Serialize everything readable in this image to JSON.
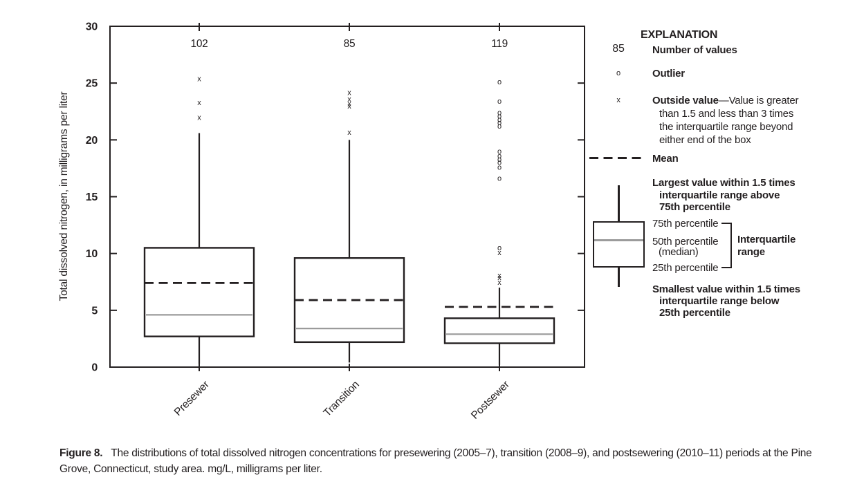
{
  "caption": {
    "label": "Figure 8.",
    "text": "The distributions of total dissolved nitrogen concentrations for presewering (2005–7), transition (2008–9), and postsewering (2010–11) periods at the Pine Grove, Connecticut, study area. mg/L, milligrams per liter."
  },
  "explanation": {
    "title": "EXPLANATION",
    "count_symbol": "85",
    "count_label": "Number of values",
    "outlier_symbol": "o",
    "outlier_label": "Outlier",
    "outside_symbol": "x",
    "outside_bold": "Outside value",
    "outside_first_line_rest": "—Value is greater",
    "outside_lines": [
      "than 1.5 and less than 3 times",
      "the interquartile range beyond",
      "either end of the box"
    ],
    "mean_label": "Mean",
    "largest_lines": [
      "Largest value within 1.5 times",
      "interquartile range above",
      "75th percentile"
    ],
    "p75_label": "75th percentile",
    "p50_label": "50th percentile",
    "median_label": "(median)",
    "p25_label": "25th percentile",
    "iqr_lines": [
      "Interquartile",
      "range"
    ],
    "smallest_lines": [
      "Smallest value within 1.5 times",
      "interquartile range below",
      "25th percentile"
    ]
  },
  "chart_data": {
    "type": "boxplot",
    "title": "",
    "xlabel": "",
    "ylabel": "Total dissolved nitrogen, in milligrams per liter",
    "ylim": [
      0,
      30
    ],
    "yticks": [
      0,
      5,
      10,
      15,
      20,
      25,
      30
    ],
    "grid": false,
    "legend_position": "right",
    "marker_outlier": "o",
    "marker_outside": "x",
    "categories": [
      "Presewer",
      "Transition",
      "Postsewer"
    ],
    "counts": [
      102,
      85,
      119
    ],
    "series": [
      {
        "category": "Presewer",
        "n": 102,
        "whisker_low": 0.3,
        "q1": 2.7,
        "median": 4.6,
        "q3": 10.5,
        "whisker_high": 20.6,
        "mean": 7.4,
        "outside_x": [
          22.0,
          23.3,
          25.4
        ],
        "outliers_o": []
      },
      {
        "category": "Transition",
        "n": 85,
        "whisker_low": 0.4,
        "q1": 2.2,
        "median": 3.4,
        "q3": 9.6,
        "whisker_high": 20.0,
        "mean": 5.9,
        "outside_x": [
          20.7,
          23.0,
          23.2,
          23.6,
          24.2
        ],
        "outliers_o": []
      },
      {
        "category": "Postsewer",
        "n": 119,
        "whisker_low": 0.2,
        "q1": 2.1,
        "median": 2.9,
        "q3": 4.3,
        "whisker_high": 7.0,
        "mean": 5.3,
        "outside_x": [
          7.5,
          7.9,
          8.1,
          10.1
        ],
        "outliers_o": [
          10.5,
          16.6,
          17.6,
          18.0,
          18.3,
          18.6,
          19.0,
          21.2,
          21.5,
          21.8,
          22.1,
          22.4,
          23.4,
          25.1
        ]
      }
    ]
  }
}
